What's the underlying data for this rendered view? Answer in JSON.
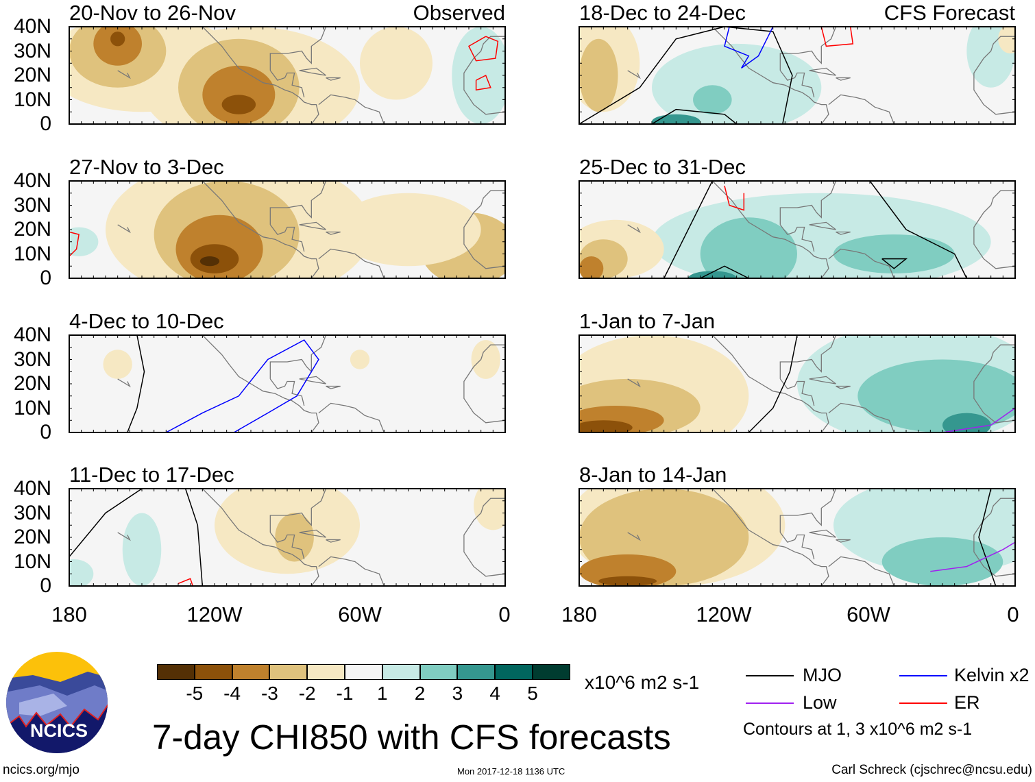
{
  "panels": [
    {
      "title": "20-Nov to 26-Nov",
      "tag": "Observed"
    },
    {
      "title": "27-Nov to 3-Dec"
    },
    {
      "title": "4-Dec to 10-Dec"
    },
    {
      "title": "11-Dec to 17-Dec"
    },
    {
      "title": "18-Dec to 24-Dec",
      "tag": "CFS Forecast"
    },
    {
      "title": "25-Dec to 31-Dec"
    },
    {
      "title": "1-Jan to 7-Jan"
    },
    {
      "title": "8-Jan to 14-Jan"
    }
  ],
  "lat_labels": [
    "40N",
    "30N",
    "20N",
    "10N",
    "0"
  ],
  "lon_labels": [
    "180",
    "120W",
    "60W",
    "0"
  ],
  "colorbar": {
    "colors": [
      "#543005",
      "#8c510a",
      "#bf812d",
      "#dfc27d",
      "#f6e8c3",
      "#f5f5f5",
      "#c7eae5",
      "#80cdc1",
      "#35978f",
      "#01665e",
      "#003c30"
    ],
    "ticks": [
      "-5",
      "-4",
      "-3",
      "-2",
      "-1",
      "1",
      "2",
      "3",
      "4",
      "5"
    ],
    "units": "x10^6 m2 s-1"
  },
  "title": "7-day CHI850 with CFS forecasts",
  "legend": [
    {
      "label": "MJO",
      "color": "#000000"
    },
    {
      "label": "Kelvin x2",
      "color": "#0000ff"
    },
    {
      "label": "Low",
      "color": "#a020f0"
    },
    {
      "label": "ER",
      "color": "#ff0000"
    }
  ],
  "contour_note": "Contours at 1, 3 x10^6 m2 s-1",
  "logo_text": "NCICS",
  "url": "ncics.org/mjo",
  "timestamp": "Mon 2017-12-18 1136 UTC",
  "credit": "Carl Schreck (cjschrec@ncsu.edu)"
}
